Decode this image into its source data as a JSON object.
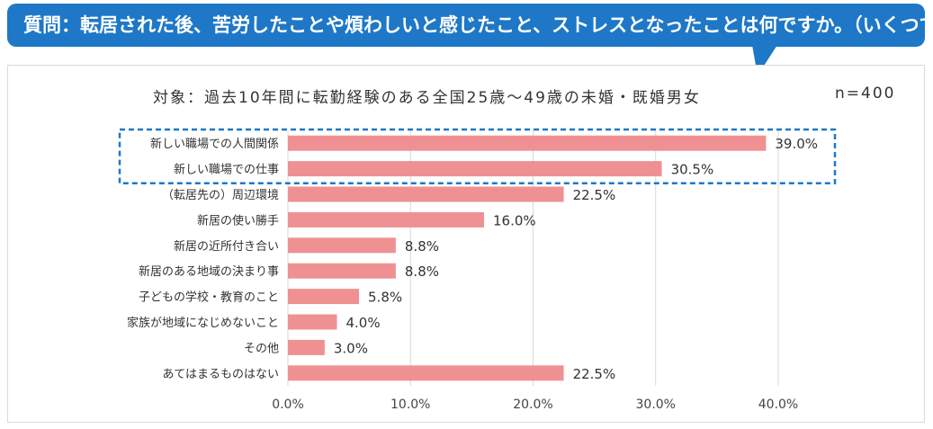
{
  "question": "質問：転居された後、苦労したことや煩わしいと感じたこと、ストレスとなったことは何ですか。（いくつでも）",
  "subtitle": "対象：過去10年間に転勤経験のある全国25歳～49歳の未婚・既婚男女",
  "sample_size": "n=400",
  "colors": {
    "banner": "#1e78c7",
    "bar": "#ef9193",
    "highlight_border": "#1e78c7",
    "grid": "#d9d9d9"
  },
  "chart_data": {
    "type": "bar",
    "orientation": "horizontal",
    "categories": [
      "新しい職場での人間関係",
      "新しい職場での仕事",
      "（転居先の）周辺環境",
      "新居の使い勝手",
      "新居の近所付き合い",
      "新居のある地域の決まり事",
      "子どもの学校・教育のこと",
      "家族が地域になじめないこと",
      "その他",
      "あてはまるものはない"
    ],
    "values": [
      39.0,
      30.5,
      22.5,
      16.0,
      8.8,
      8.8,
      5.8,
      4.0,
      3.0,
      22.5
    ],
    "value_labels": [
      "39.0%",
      "30.5%",
      "22.5%",
      "16.0%",
      "8.8%",
      "8.8%",
      "5.8%",
      "4.0%",
      "3.0%",
      "22.5%"
    ],
    "xlim": [
      0,
      40
    ],
    "xticks": [
      0,
      10,
      20,
      30,
      40
    ],
    "xtick_labels": [
      "0.0%",
      "10.0%",
      "20.0%",
      "30.0%",
      "40.0%"
    ],
    "highlighted_categories": [
      "新しい職場での人間関係",
      "新しい職場での仕事"
    ],
    "grid": true
  }
}
